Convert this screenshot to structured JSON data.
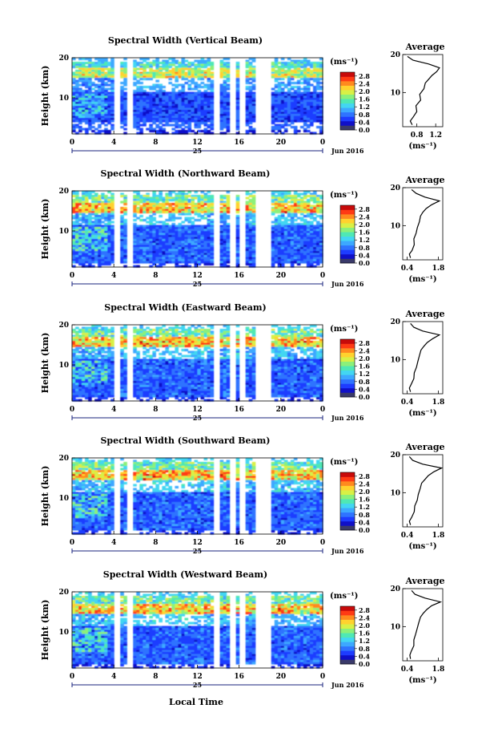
{
  "figure": {
    "xlabel_bottom": "Local Time",
    "date_label": "Jun 2016",
    "day_label": "25",
    "average_title": "Average",
    "colorbar_unit": "(ms⁻¹)",
    "avg_xunit": "(ms⁻¹)",
    "ylabel": "Height (km)"
  },
  "chart_data": [
    {
      "type": "heatmap",
      "title": "Spectral Width (Vertical Beam)",
      "x_ticks": [
        "0",
        "4",
        "8",
        "12",
        "16",
        "20",
        "0"
      ],
      "y_ticks": [
        "10",
        "20"
      ],
      "xlim": [
        0,
        24
      ],
      "ylim": [
        1,
        20
      ],
      "colorbar_ticks": [
        "0.0",
        "0.4",
        "0.8",
        "1.2",
        "1.6",
        "2.0",
        "2.4",
        "2.8"
      ],
      "colorbar_range": [
        0,
        3.0
      ],
      "data_gaps_hours": [
        [
          4.0,
          4.6
        ],
        [
          5.2,
          5.8
        ],
        [
          13.6,
          14.1
        ],
        [
          15.2,
          15.6
        ],
        [
          16.1,
          16.6
        ],
        [
          17.5,
          19.2
        ]
      ],
      "average_profile": {
        "x_ticks": [
          "0.8",
          "1.2"
        ],
        "xlim": [
          0.5,
          1.35
        ],
        "points": [
          [
            0.7,
            1.5
          ],
          [
            0.66,
            2.5
          ],
          [
            0.72,
            3.5
          ],
          [
            0.8,
            5
          ],
          [
            0.78,
            6.5
          ],
          [
            0.88,
            8
          ],
          [
            0.86,
            9.5
          ],
          [
            0.95,
            11
          ],
          [
            0.98,
            12.5
          ],
          [
            1.05,
            13.5
          ],
          [
            1.12,
            14.5
          ],
          [
            1.22,
            15.5
          ],
          [
            1.28,
            16.5
          ],
          [
            1.05,
            17.5
          ],
          [
            0.72,
            18.5
          ],
          [
            0.6,
            19.5
          ]
        ]
      }
    },
    {
      "type": "heatmap",
      "title": "Spectral Width (Northward Beam)",
      "x_ticks": [
        "0",
        "4",
        "8",
        "12",
        "16",
        "20",
        "0"
      ],
      "y_ticks": [
        "10",
        "20"
      ],
      "xlim": [
        0,
        24
      ],
      "ylim": [
        1,
        20
      ],
      "colorbar_ticks": [
        "0.0",
        "0.4",
        "0.8",
        "1.2",
        "1.6",
        "2.0",
        "2.4",
        "2.8"
      ],
      "colorbar_range": [
        0,
        3.0
      ],
      "data_gaps_hours": [
        [
          4.0,
          4.6
        ],
        [
          5.2,
          5.8
        ],
        [
          13.6,
          14.1
        ],
        [
          15.2,
          15.6
        ],
        [
          16.1,
          16.6
        ],
        [
          17.5,
          19.2
        ]
      ],
      "average_profile": {
        "x_ticks": [
          "0.4",
          "1.8"
        ],
        "xlim": [
          0.2,
          2.0
        ],
        "points": [
          [
            0.55,
            1.5
          ],
          [
            0.5,
            2.5
          ],
          [
            0.62,
            3.5
          ],
          [
            0.72,
            5
          ],
          [
            0.7,
            6.5
          ],
          [
            0.8,
            8
          ],
          [
            0.86,
            9.5
          ],
          [
            0.95,
            11
          ],
          [
            1.0,
            12.5
          ],
          [
            1.1,
            13.5
          ],
          [
            1.25,
            14.5
          ],
          [
            1.5,
            15.5
          ],
          [
            1.85,
            16.5
          ],
          [
            1.2,
            17.5
          ],
          [
            0.8,
            18.5
          ],
          [
            0.6,
            19.5
          ]
        ]
      }
    },
    {
      "type": "heatmap",
      "title": "Spectral Width (Eastward Beam)",
      "x_ticks": [
        "0",
        "4",
        "8",
        "12",
        "16",
        "20",
        "0"
      ],
      "y_ticks": [
        "10",
        "20"
      ],
      "xlim": [
        0,
        24
      ],
      "ylim": [
        1,
        20
      ],
      "colorbar_ticks": [
        "0.0",
        "0.4",
        "0.8",
        "1.2",
        "1.6",
        "2.0",
        "2.4",
        "2.8"
      ],
      "colorbar_range": [
        0,
        3.0
      ],
      "data_gaps_hours": [
        [
          4.0,
          4.6
        ],
        [
          5.2,
          5.8
        ],
        [
          13.6,
          14.1
        ],
        [
          15.2,
          15.6
        ],
        [
          16.1,
          16.6
        ],
        [
          17.5,
          19.2
        ]
      ],
      "average_profile": {
        "x_ticks": [
          "0.4",
          "1.8"
        ],
        "xlim": [
          0.2,
          2.0
        ],
        "points": [
          [
            0.55,
            1.5
          ],
          [
            0.5,
            2.5
          ],
          [
            0.58,
            3.5
          ],
          [
            0.7,
            5
          ],
          [
            0.72,
            6.5
          ],
          [
            0.82,
            8
          ],
          [
            0.88,
            9.5
          ],
          [
            0.95,
            11
          ],
          [
            1.02,
            12.5
          ],
          [
            1.15,
            13.5
          ],
          [
            1.3,
            14.5
          ],
          [
            1.55,
            15.5
          ],
          [
            1.85,
            16.5
          ],
          [
            1.1,
            17.5
          ],
          [
            0.7,
            18.5
          ],
          [
            0.55,
            19.5
          ]
        ]
      }
    },
    {
      "type": "heatmap",
      "title": "Spectral Width (Southward Beam)",
      "x_ticks": [
        "0",
        "4",
        "8",
        "12",
        "16",
        "20",
        "0"
      ],
      "y_ticks": [
        "10",
        "20"
      ],
      "xlim": [
        0,
        24
      ],
      "ylim": [
        1,
        20
      ],
      "colorbar_ticks": [
        "0.0",
        "0.4",
        "0.8",
        "1.2",
        "1.6",
        "2.0",
        "2.4",
        "2.8"
      ],
      "colorbar_range": [
        0,
        3.0
      ],
      "data_gaps_hours": [
        [
          4.0,
          4.6
        ],
        [
          5.2,
          5.8
        ],
        [
          13.6,
          14.1
        ],
        [
          15.2,
          15.6
        ],
        [
          16.1,
          16.6
        ],
        [
          17.5,
          19.2
        ]
      ],
      "average_profile": {
        "x_ticks": [
          "0.4",
          "1.8"
        ],
        "xlim": [
          0.2,
          2.0
        ],
        "points": [
          [
            0.55,
            1.5
          ],
          [
            0.5,
            2.5
          ],
          [
            0.6,
            3.5
          ],
          [
            0.72,
            5
          ],
          [
            0.74,
            6.5
          ],
          [
            0.85,
            8
          ],
          [
            0.9,
            9.5
          ],
          [
            0.98,
            11
          ],
          [
            1.05,
            12.5
          ],
          [
            1.2,
            13.5
          ],
          [
            1.35,
            14.5
          ],
          [
            1.6,
            15.5
          ],
          [
            1.95,
            16.5
          ],
          [
            1.1,
            17.5
          ],
          [
            0.65,
            18.5
          ],
          [
            0.5,
            19.5
          ]
        ]
      }
    },
    {
      "type": "heatmap",
      "title": "Spectral Width (Westward Beam)",
      "x_ticks": [
        "0",
        "4",
        "8",
        "12",
        "16",
        "20",
        "0"
      ],
      "y_ticks": [
        "10",
        "20"
      ],
      "xlim": [
        0,
        24
      ],
      "ylim": [
        1,
        20
      ],
      "colorbar_ticks": [
        "0.0",
        "0.4",
        "0.8",
        "1.2",
        "1.6",
        "2.0",
        "2.4",
        "2.8"
      ],
      "colorbar_range": [
        0,
        3.0
      ],
      "data_gaps_hours": [
        [
          4.0,
          4.6
        ],
        [
          5.2,
          5.8
        ],
        [
          13.6,
          14.1
        ],
        [
          15.2,
          15.6
        ],
        [
          16.1,
          16.6
        ],
        [
          17.5,
          19.2
        ]
      ],
      "average_profile": {
        "x_ticks": [
          "0.4",
          "1.8"
        ],
        "xlim": [
          0.2,
          2.0
        ],
        "points": [
          [
            0.55,
            1.5
          ],
          [
            0.52,
            2.5
          ],
          [
            0.58,
            3.5
          ],
          [
            0.7,
            5
          ],
          [
            0.7,
            6.5
          ],
          [
            0.78,
            8
          ],
          [
            0.85,
            9.5
          ],
          [
            0.92,
            11
          ],
          [
            1.0,
            12.5
          ],
          [
            1.12,
            13.5
          ],
          [
            1.28,
            14.5
          ],
          [
            1.5,
            15.5
          ],
          [
            1.9,
            16.5
          ],
          [
            1.2,
            17.5
          ],
          [
            0.75,
            18.5
          ],
          [
            0.6,
            19.5
          ]
        ]
      }
    }
  ]
}
